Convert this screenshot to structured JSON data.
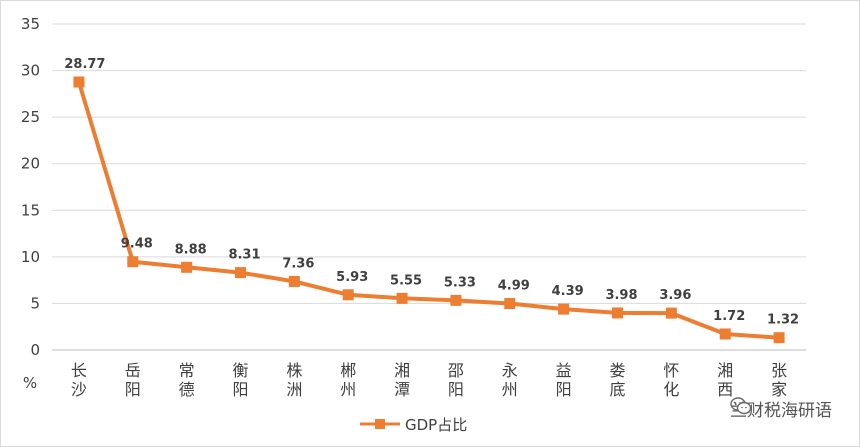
{
  "chart_data": {
    "type": "line",
    "title": "",
    "xlabel": "",
    "ylabel": "%",
    "ylim": [
      0,
      35
    ],
    "yticks": [
      0,
      5,
      10,
      15,
      20,
      25,
      30,
      35
    ],
    "grid": true,
    "legend_position": "bottom",
    "categories": [
      "长沙",
      "岳阳",
      "常德",
      "衡阳",
      "株洲",
      "郴州",
      "湘潭",
      "邵阳",
      "永州",
      "益阳",
      "娄底",
      "怀化",
      "湘西",
      "张家"
    ],
    "series": [
      {
        "name": "GDP占比",
        "color": "#ED7D31",
        "values": [
          28.77,
          9.48,
          8.88,
          8.31,
          7.36,
          5.93,
          5.55,
          5.33,
          4.99,
          4.39,
          3.98,
          3.96,
          1.72,
          1.32
        ],
        "labels": [
          "28.77",
          "9.48",
          "8.88",
          "8.31",
          "7.36",
          "5.93",
          "5.55",
          "5.33",
          "4.99",
          "4.39",
          "3.98",
          "3.96",
          "1.72",
          "1.32"
        ]
      }
    ]
  },
  "watermark": {
    "icon": "wechat-icon",
    "text": "兰财税海研语"
  }
}
